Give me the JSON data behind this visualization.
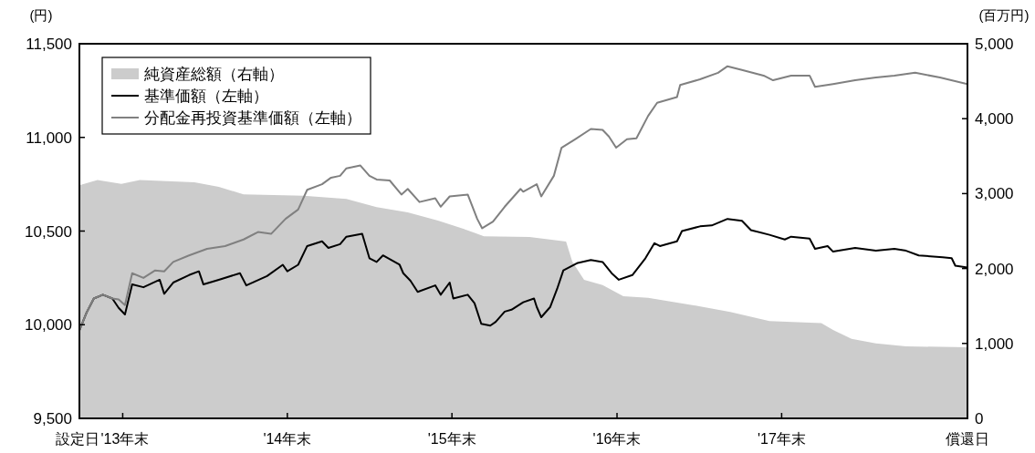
{
  "chart_data": {
    "type": "line",
    "ylabel": "(円)",
    "y2label": "(百万円)",
    "xlim": [
      "2013-09-26",
      "2019-02-16"
    ],
    "xticks": [
      {
        "value": "2013-09-26",
        "label": "設定日"
      },
      {
        "value": "2013-12-31",
        "label": "'13年末"
      },
      {
        "value": "2014-12-31",
        "label": "'14年末"
      },
      {
        "value": "2015-12-31",
        "label": "'15年末"
      },
      {
        "value": "2016-12-31",
        "label": "'16年末"
      },
      {
        "value": "2017-12-31",
        "label": "'17年末"
      },
      {
        "value": "2019-02-16",
        "label": "償還日"
      }
    ],
    "ylim": [
      9500,
      11500
    ],
    "yticks": [
      {
        "value": 9500,
        "label": "9,500"
      },
      {
        "value": 10000,
        "label": "10,000"
      },
      {
        "value": 10500,
        "label": "10,500"
      },
      {
        "value": 11000,
        "label": "11,000"
      },
      {
        "value": 11500,
        "label": "11,500"
      }
    ],
    "y2lim": [
      0,
      5000
    ],
    "y2ticks": [
      0,
      {
        "value": 1000,
        "label": "1,000"
      },
      {
        "value": 2000,
        "label": "2,000"
      },
      {
        "value": 3000,
        "label": "3,000"
      },
      {
        "value": 4000,
        "label": "4,000"
      },
      {
        "value": 5000,
        "label": "5,000"
      }
    ],
    "grid": false,
    "legend": "top left",
    "series": [
      {
        "name": "純資産総額（右軸）",
        "type": "area",
        "axis": "y2",
        "color": "#cccccc",
        "x": [
          "2013-09-26",
          "2013-11-05",
          "2013-12-28",
          "2014-02-07",
          "2014-06-08",
          "2014-08-01",
          "2014-09-25",
          "2015-02-05",
          "2015-05-11",
          "2015-07-17",
          "2015-09-24",
          "2015-11-30",
          "2016-02-04",
          "2016-03-11",
          "2016-06-20",
          "2016-09-09",
          "2016-09-23",
          "2016-10-19",
          "2016-11-29",
          "2017-01-14",
          "2017-03-10",
          "2017-06-19",
          "2017-09-08",
          "2017-12-04",
          "2018-03-29",
          "2018-04-24",
          "2018-06-04",
          "2018-07-28",
          "2018-10-03",
          "2019-02-16"
        ],
        "values": [
          3110,
          3180,
          3130,
          3180,
          3150,
          3090,
          2990,
          2970,
          2930,
          2820,
          2750,
          2640,
          2510,
          2430,
          2420,
          2360,
          2090,
          1850,
          1780,
          1630,
          1610,
          1510,
          1420,
          1300,
          1270,
          1180,
          1060,
          1000,
          960,
          950
        ]
      },
      {
        "name": "基準価額（左軸）",
        "type": "line",
        "color": "#000000",
        "x": [
          "2013-09-26",
          "2013-10-12",
          "2013-10-28",
          "2013-11-17",
          "2013-12-08",
          "2013-12-22",
          "2014-01-05",
          "2014-01-21",
          "2014-02-15",
          "2014-03-23",
          "2014-04-02",
          "2014-04-22",
          "2014-05-27",
          "2014-06-18",
          "2014-06-28",
          "2014-08-01",
          "2014-09-17",
          "2014-10-01",
          "2014-11-16",
          "2014-12-21",
          "2014-12-31",
          "2015-01-24",
          "2015-02-13",
          "2015-03-18",
          "2015-04-01",
          "2015-04-27",
          "2015-05-11",
          "2015-06-15",
          "2015-07-01",
          "2015-07-17",
          "2015-07-31",
          "2015-09-06",
          "2015-09-14",
          "2015-09-30",
          "2015-10-16",
          "2015-11-24",
          "2015-12-06",
          "2015-12-26",
          "2016-01-03",
          "2016-02-04",
          "2016-02-19",
          "2016-03-05",
          "2016-03-25",
          "2016-04-06",
          "2016-04-26",
          "2016-05-11",
          "2016-06-06",
          "2016-06-30",
          "2016-07-06",
          "2016-07-16",
          "2016-08-05",
          "2016-08-20",
          "2016-09-03",
          "2016-10-05",
          "2016-11-03",
          "2016-11-29",
          "2016-12-19",
          "2017-01-04",
          "2017-02-03",
          "2017-03-04",
          "2017-03-24",
          "2017-04-05",
          "2017-05-13",
          "2017-05-24",
          "2017-07-03",
          "2017-07-29",
          "2017-09-02",
          "2017-10-04",
          "2017-10-24",
          "2017-12-04",
          "2018-01-07",
          "2018-01-21",
          "2018-03-03",
          "2018-03-15",
          "2018-04-12",
          "2018-04-24",
          "2018-06-12",
          "2018-07-28",
          "2018-09-07",
          "2018-10-03",
          "2018-10-31",
          "2018-12-23",
          "2019-01-12",
          "2019-01-20",
          "2019-02-16"
        ],
        "values": [
          9970,
          10065,
          10140,
          10160,
          10140,
          10090,
          10055,
          10215,
          10200,
          10240,
          10165,
          10225,
          10265,
          10285,
          10215,
          10240,
          10275,
          10210,
          10260,
          10320,
          10285,
          10320,
          10420,
          10445,
          10410,
          10430,
          10470,
          10485,
          10355,
          10335,
          10370,
          10320,
          10275,
          10235,
          10175,
          10210,
          10160,
          10225,
          10140,
          10160,
          10115,
          10005,
          9995,
          10015,
          10070,
          10080,
          10120,
          10140,
          10095,
          10040,
          10095,
          10190,
          10290,
          10330,
          10345,
          10335,
          10275,
          10240,
          10265,
          10355,
          10435,
          10420,
          10445,
          10500,
          10525,
          10530,
          10565,
          10555,
          10505,
          10480,
          10455,
          10470,
          10460,
          10405,
          10420,
          10390,
          10410,
          10395,
          10405,
          10395,
          10370,
          10360,
          10355,
          10315,
          10305
        ]
      },
      {
        "name": "分配金再投資基準価額（左軸）",
        "type": "line",
        "color": "#808080",
        "x": [
          "2013-09-26",
          "2013-10-12",
          "2013-10-28",
          "2013-11-17",
          "2013-12-08",
          "2013-12-22",
          "2014-01-05",
          "2014-01-21",
          "2014-02-15",
          "2014-03-13",
          "2014-04-02",
          "2014-04-22",
          "2014-05-27",
          "2014-07-06",
          "2014-08-15",
          "2014-09-25",
          "2014-10-27",
          "2014-11-25",
          "2014-12-27",
          "2015-01-24",
          "2015-02-13",
          "2015-03-18",
          "2015-04-07",
          "2015-04-27",
          "2015-05-11",
          "2015-06-11",
          "2015-07-01",
          "2015-07-17",
          "2015-08-15",
          "2015-09-10",
          "2015-09-24",
          "2015-10-20",
          "2015-11-24",
          "2015-12-06",
          "2015-12-26",
          "2016-02-04",
          "2016-02-25",
          "2016-03-07",
          "2016-03-31",
          "2016-04-26",
          "2016-05-31",
          "2016-06-06",
          "2016-07-06",
          "2016-07-16",
          "2016-08-13",
          "2016-08-30",
          "2016-09-29",
          "2016-11-03",
          "2016-11-29",
          "2016-12-13",
          "2016-12-29",
          "2017-01-22",
          "2017-02-12",
          "2017-03-10",
          "2017-03-30",
          "2017-05-13",
          "2017-05-20",
          "2017-07-03",
          "2017-08-12",
          "2017-09-02",
          "2017-10-04",
          "2017-11-21",
          "2017-12-12",
          "2018-01-21",
          "2018-03-03",
          "2018-03-15",
          "2018-04-24",
          "2018-06-12",
          "2018-07-28",
          "2018-09-07",
          "2018-10-23",
          "2018-12-17",
          "2019-02-16"
        ],
        "values": [
          9970,
          10065,
          10140,
          10160,
          10140,
          10135,
          10105,
          10275,
          10250,
          10290,
          10285,
          10335,
          10370,
          10405,
          10420,
          10455,
          10495,
          10485,
          10565,
          10615,
          10720,
          10750,
          10785,
          10795,
          10835,
          10850,
          10795,
          10775,
          10770,
          10695,
          10725,
          10655,
          10675,
          10630,
          10685,
          10695,
          10565,
          10515,
          10550,
          10630,
          10725,
          10710,
          10750,
          10685,
          10795,
          10945,
          10990,
          11045,
          11040,
          11005,
          10945,
          10990,
          10995,
          11115,
          11185,
          11215,
          11280,
          11310,
          11345,
          11380,
          11360,
          11330,
          11305,
          11330,
          11330,
          11270,
          11285,
          11305,
          11320,
          11330,
          11345,
          11320,
          11285
        ]
      }
    ]
  }
}
